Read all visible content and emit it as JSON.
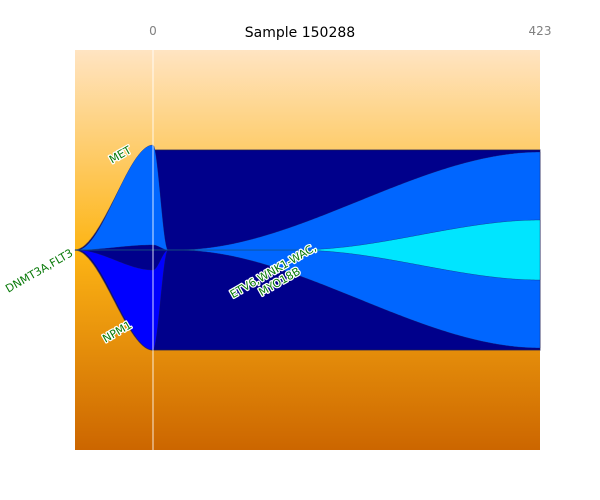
{
  "chart_data": {
    "type": "fishplot",
    "title": "Sample 150288",
    "timepoints": [
      0,
      423
    ],
    "background": {
      "top": "#ffe4c2",
      "middle": "#fdb515",
      "bottom": "#cc6600"
    },
    "clones": [
      {
        "id": "c1",
        "label": "DNMT3A,FLT3",
        "parent": null,
        "color": "#00008b",
        "fractions": [
          100,
          100
        ]
      },
      {
        "id": "c2",
        "label": "MET",
        "parent": "c1",
        "color": "#0066ff",
        "fractions": [
          50,
          0
        ]
      },
      {
        "id": "c3",
        "label": "NPM1",
        "parent": "c1",
        "color": "#0000ff",
        "fractions": [
          40,
          0
        ]
      },
      {
        "id": "c4",
        "label": "ETV6,WNK1-WAC,\nMYO18B",
        "parent": "c1",
        "color": "#0066ff",
        "fractions": [
          0,
          98
        ]
      },
      {
        "id": "c5",
        "label": "",
        "parent": "c4",
        "color": "#00e5ff",
        "fractions": [
          0,
          30
        ]
      }
    ]
  }
}
